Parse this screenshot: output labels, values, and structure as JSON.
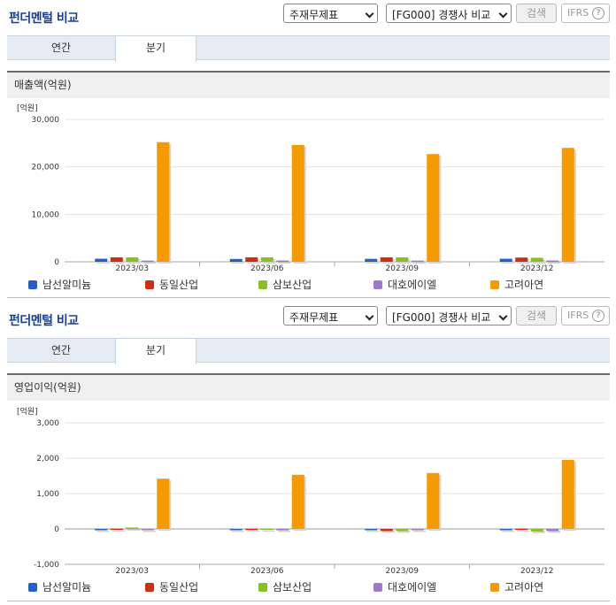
{
  "panels": [
    {
      "title": "펀더멘털 비교",
      "statement_select": "주재무제표",
      "compare_select": "[FG000] 경쟁사 비교",
      "search_label": "검색",
      "ifrs_label": "IFRS",
      "help_glyph": "?",
      "tabs": [
        "연간",
        "분기"
      ],
      "active_tab": "분기",
      "section_title": "매출액(억원)"
    },
    {
      "title": "펀더멘털 비교",
      "statement_select": "주재무제표",
      "compare_select": "[FG000] 경쟁사 비교",
      "search_label": "검색",
      "ifrs_label": "IFRS",
      "help_glyph": "?",
      "tabs": [
        "연간",
        "분기"
      ],
      "active_tab": "분기",
      "section_title": "영업이익(억원)"
    }
  ],
  "colors": {
    "남선알미늄": "#2160c8",
    "동일산업": "#cc3010",
    "삼보산업": "#88c020",
    "대호에이엘": "#9d78cc",
    "고려아연": "#f59a00"
  },
  "chart_data": [
    {
      "type": "bar",
      "unit_label": "[억원]",
      "categories": [
        "2023/03",
        "2023/06",
        "2023/09",
        "2023/12"
      ],
      "ylim": [
        0,
        30000
      ],
      "yticks": [
        0,
        10000,
        20000,
        30000
      ],
      "ytick_labels": [
        "0",
        "10,000",
        "20,000",
        "30,000"
      ],
      "grid": true,
      "legend_position": "bottom",
      "series": [
        {
          "name": "남선알미늄",
          "values": [
            650,
            600,
            620,
            640
          ]
        },
        {
          "name": "동일산업",
          "values": [
            950,
            950,
            950,
            900
          ]
        },
        {
          "name": "삼보산업",
          "values": [
            950,
            950,
            950,
            850
          ]
        },
        {
          "name": "대호에이엘",
          "values": [
            250,
            280,
            250,
            280
          ]
        },
        {
          "name": "고려아연",
          "values": [
            25200,
            24600,
            22700,
            24000
          ]
        }
      ]
    },
    {
      "type": "bar",
      "unit_label": "[억원]",
      "categories": [
        "2023/03",
        "2023/06",
        "2023/09",
        "2023/12"
      ],
      "ylim": [
        -1000,
        3000
      ],
      "yticks": [
        -1000,
        0,
        1000,
        2000,
        3000
      ],
      "ytick_labels": [
        "-1,000",
        "0",
        "1,000",
        "2,000",
        "3,000"
      ],
      "grid": true,
      "legend_position": "bottom",
      "series": [
        {
          "name": "남선알미늄",
          "values": [
            -30,
            -30,
            -20,
            -30
          ]
        },
        {
          "name": "동일산업",
          "values": [
            10,
            5,
            -60,
            10
          ]
        },
        {
          "name": "삼보산업",
          "values": [
            40,
            10,
            -60,
            -70
          ]
        },
        {
          "name": "대호에이엘",
          "values": [
            -20,
            -40,
            -10,
            -60
          ]
        },
        {
          "name": "고려아연",
          "values": [
            1420,
            1530,
            1580,
            1950
          ]
        }
      ]
    }
  ]
}
